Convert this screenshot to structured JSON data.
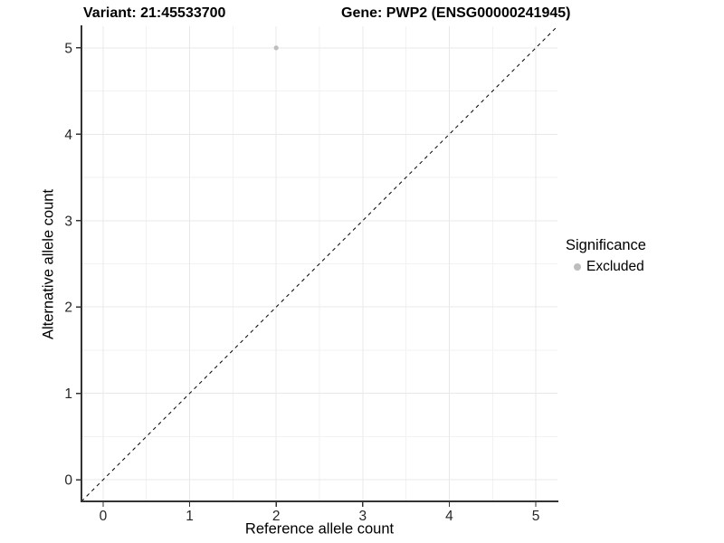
{
  "figure": {
    "title_left": "Variant: 21:45533700",
    "title_right": "Gene: PWP2 (ENSG00000241945)"
  },
  "chart_data": {
    "type": "scatter",
    "xlabel": "Reference allele count",
    "ylabel": "Alternative allele count",
    "xlim": [
      -0.25,
      5.25
    ],
    "ylim": [
      -0.25,
      5.25
    ],
    "xticks": [
      0,
      1,
      2,
      3,
      4,
      5
    ],
    "yticks": [
      0,
      1,
      2,
      3,
      4,
      5
    ],
    "minor_xticks": [
      0.5,
      1.5,
      2.5,
      3.5,
      4.5
    ],
    "minor_yticks": [
      0.5,
      1.5,
      2.5,
      3.5,
      4.5
    ],
    "grid": {
      "visible": true,
      "major_color": "#e8e8e8",
      "minor_color": "#f2f2f2"
    },
    "reference_line": {
      "slope": 1,
      "intercept": 0,
      "style": "dashed",
      "color": "#000000"
    },
    "series": [
      {
        "name": "Excluded",
        "color": "#bebebe",
        "points": [
          {
            "x": 2,
            "y": 5
          }
        ]
      }
    ],
    "legend": {
      "title": "Significance",
      "position": "right",
      "entries": [
        {
          "label": "Excluded",
          "color": "#bebebe"
        }
      ]
    },
    "panel_background": "#ffffff",
    "axis_line_color": "#333333"
  }
}
